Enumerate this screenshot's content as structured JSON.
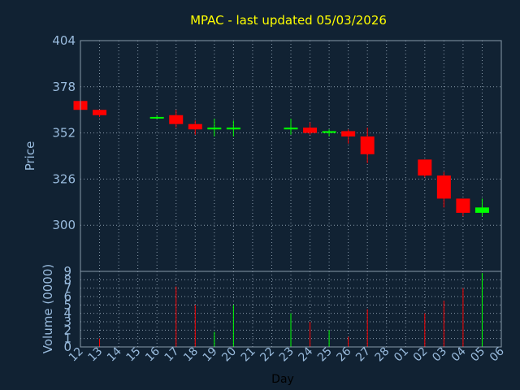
{
  "chart_data": {
    "type": "candlestick",
    "title": "MPAC - last updated 05/03/2026",
    "price_axis": {
      "label": "Price",
      "ticks": [
        300,
        326,
        352,
        378,
        404
      ],
      "range": [
        274,
        404
      ]
    },
    "volume_axis": {
      "label": "Volume (0000)",
      "ticks": [
        0,
        1,
        2,
        3,
        4,
        5,
        6,
        7,
        8,
        9
      ],
      "range": [
        0,
        9
      ]
    },
    "xlabel": "Day",
    "x_ticks": [
      "12",
      "13",
      "14",
      "15",
      "16",
      "17",
      "18",
      "19",
      "20",
      "21",
      "22",
      "23",
      "24",
      "25",
      "26",
      "27",
      "28",
      "01",
      "02",
      "03",
      "04",
      "05",
      "06"
    ],
    "grid": true,
    "candles": [
      {
        "day": "12",
        "open": 370,
        "high": 370,
        "low": 365,
        "close": 365,
        "volume": 0.0
      },
      {
        "day": "13",
        "open": 365,
        "high": 365,
        "low": 361,
        "close": 362,
        "volume": 1.0
      },
      {
        "day": "16",
        "open": 361,
        "high": 362,
        "low": 360,
        "close": 361,
        "volume": 0.0
      },
      {
        "day": "17",
        "open": 362,
        "high": 365,
        "low": 355,
        "close": 357,
        "volume": 7.2
      },
      {
        "day": "18",
        "open": 357,
        "high": 359,
        "low": 351,
        "close": 354,
        "volume": 5.0
      },
      {
        "day": "19",
        "open": 354,
        "high": 360,
        "low": 350,
        "close": 355,
        "volume": 1.8
      },
      {
        "day": "20",
        "open": 354,
        "high": 359,
        "low": 350,
        "close": 355,
        "volume": 5.0
      },
      {
        "day": "23",
        "open": 354,
        "high": 360,
        "low": 351,
        "close": 355,
        "volume": 4.0
      },
      {
        "day": "24",
        "open": 355,
        "high": 358,
        "low": 351,
        "close": 352,
        "volume": 3.0
      },
      {
        "day": "25",
        "open": 352,
        "high": 354,
        "low": 350,
        "close": 353,
        "volume": 2.0
      },
      {
        "day": "26",
        "open": 353,
        "high": 354,
        "low": 346,
        "close": 350,
        "volume": 1.2
      },
      {
        "day": "27",
        "open": 350,
        "high": 355,
        "low": 335,
        "close": 340,
        "volume": 4.5
      },
      {
        "day": "02",
        "open": 337,
        "high": 337,
        "low": 327,
        "close": 328,
        "volume": 4.0
      },
      {
        "day": "03",
        "open": 328,
        "high": 330,
        "low": 310,
        "close": 315,
        "volume": 5.5
      },
      {
        "day": "04",
        "open": 315,
        "high": 315,
        "low": 305,
        "close": 307,
        "volume": 7.0
      },
      {
        "day": "05",
        "open": 307,
        "high": 315,
        "low": 305,
        "close": 310,
        "volume": 8.8
      }
    ],
    "colors": {
      "background": "#112233",
      "up": "#00ff00",
      "down": "#ff0000",
      "grid": "#8899aa",
      "axis_text": "#99bbdd",
      "title": "#ffff00"
    }
  }
}
